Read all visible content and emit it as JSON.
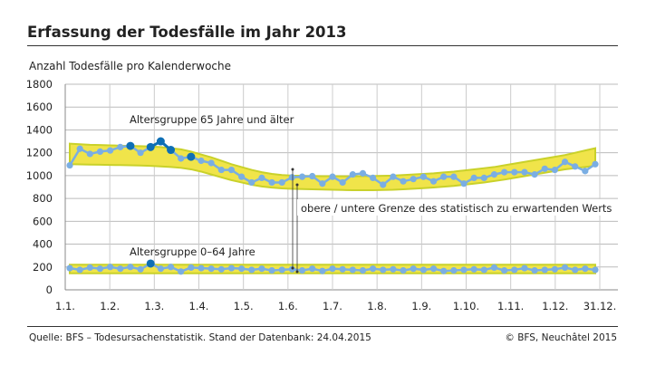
{
  "title": "Erfassung der Todesfälle im Jahr 2013",
  "subtitle": "Anzahl Todesfälle pro Kalenderwoche",
  "footer": {
    "source": "Quelle: BFS – Todesursachenstatistik. Stand der Datenbank: 24.04.2015",
    "copyright": "© BFS, Neuchâtel 2015"
  },
  "chart_data": {
    "type": "line",
    "ylim": [
      0,
      1800
    ],
    "yticks": [
      "0",
      "200",
      "400",
      "600",
      "800",
      "1000",
      "1200",
      "1400",
      "1600",
      "1800"
    ],
    "xticks": [
      "1.1.",
      "1.2.",
      "1.3.",
      "1.4.",
      "1.5.",
      "1.6.",
      "1.7.",
      "1.8.",
      "1.9.",
      "1.10.",
      "1.11.",
      "1.12.",
      "31.12."
    ],
    "grid": true,
    "colors": {
      "line": "#7aaee3",
      "highlight": "#0e6fb5",
      "band": "#f0e44a",
      "band_edge": "#c9d12a"
    },
    "annotation": "obere / untere Grenze des statistisch zu erwartenden Werts",
    "series": [
      {
        "name": "Altersgruppe 65 Jahre und älter",
        "values": [
          1090,
          1235,
          1190,
          1210,
          1220,
          1250,
          1260,
          1200,
          1250,
          1300,
          1225,
          1150,
          1165,
          1130,
          1110,
          1050,
          1050,
          990,
          940,
          980,
          940,
          940,
          985,
          990,
          995,
          930,
          990,
          940,
          1010,
          1020,
          980,
          920,
          990,
          950,
          970,
          990,
          950,
          990,
          990,
          930,
          980,
          980,
          1010,
          1030,
          1030,
          1030,
          1010,
          1060,
          1050,
          1120,
          1080,
          1040,
          1100
        ],
        "highlighted_weeks": [
          7,
          9,
          10,
          11,
          13
        ],
        "band_upper": [
          1280,
          1275,
          1270,
          1268,
          1265,
          1262,
          1260,
          1258,
          1255,
          1250,
          1240,
          1230,
          1210,
          1185,
          1160,
          1130,
          1100,
          1075,
          1050,
          1030,
          1015,
          1005,
          1000,
          998,
          996,
          995,
          995,
          994,
          994,
          995,
          996,
          998,
          1000,
          1005,
          1010,
          1015,
          1020,
          1028,
          1035,
          1045,
          1055,
          1065,
          1075,
          1090,
          1105,
          1120,
          1135,
          1150,
          1165,
          1180,
          1200,
          1220,
          1240
        ],
        "band_lower": [
          1100,
          1098,
          1096,
          1095,
          1093,
          1092,
          1090,
          1088,
          1085,
          1080,
          1075,
          1068,
          1055,
          1035,
          1010,
          985,
          960,
          940,
          920,
          905,
          895,
          888,
          884,
          882,
          880,
          878,
          876,
          874,
          872,
          872,
          872,
          874,
          876,
          880,
          885,
          890,
          896,
          903,
          910,
          920,
          930,
          940,
          952,
          965,
          980,
          995,
          1010,
          1025,
          1040,
          1055,
          1065,
          1075,
          1085
        ]
      },
      {
        "name": "Altersgruppe 0–64 Jahre",
        "values": [
          190,
          175,
          195,
          185,
          200,
          185,
          200,
          180,
          230,
          185,
          200,
          160,
          195,
          190,
          185,
          180,
          190,
          185,
          175,
          185,
          170,
          175,
          180,
          170,
          185,
          165,
          185,
          180,
          175,
          170,
          185,
          175,
          180,
          170,
          185,
          175,
          185,
          165,
          170,
          175,
          180,
          175,
          195,
          170,
          175,
          190,
          170,
          175,
          180,
          195,
          175,
          185,
          175
        ],
        "highlighted_weeks": [
          9
        ],
        "band_upper": [
          220
        ],
        "band_lower": [
          145
        ]
      }
    ]
  }
}
